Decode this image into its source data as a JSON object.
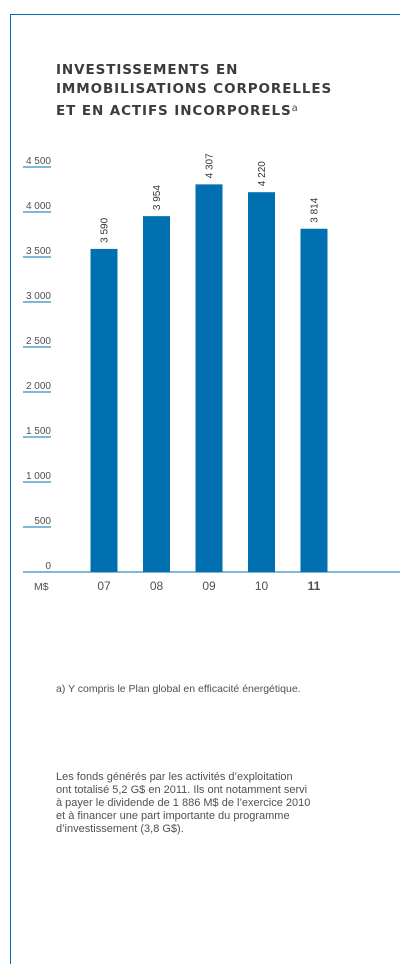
{
  "title": {
    "line1": "INVESTISSEMENTS EN",
    "line2": "IMMOBILISATIONS CORPORELLES",
    "line3": "ET EN ACTIFS INCORPORELS",
    "note_marker": "a"
  },
  "colors": {
    "accent": "#0070b0",
    "bar": "#0070b0",
    "text": "#505050"
  },
  "chart_data": {
    "type": "bar",
    "categories": [
      "07",
      "08",
      "09",
      "10",
      "11"
    ],
    "values": [
      3590,
      3954,
      4307,
      4220,
      3814
    ],
    "data_labels": [
      "3 590",
      "3 954",
      "4 307",
      "4 220",
      "3 814"
    ],
    "bold_category": "11",
    "yunit": "M$",
    "ylim": [
      0,
      4500
    ],
    "yticks": [
      0,
      500,
      1000,
      1500,
      2000,
      2500,
      3000,
      3500,
      4000,
      4500
    ],
    "ytick_labels": [
      "0",
      "500",
      "1 000",
      "1 500",
      "2 000",
      "2 500",
      "3 000",
      "3 500",
      "4 000",
      "4 500"
    ]
  },
  "footnote": "a)  Y compris le Plan global en efficacité énergétique.",
  "body": {
    "line1": "Les fonds générés par les activités d’exploitation",
    "line2": "ont totalisé 5,2 G$ en 2011. Ils ont notamment servi",
    "line3": "à payer le dividende de 1 886 M$ de l’exercice 2010",
    "line4": "et à financer une part importante du programme",
    "line5": "d’investissement (3,8 G$)."
  }
}
